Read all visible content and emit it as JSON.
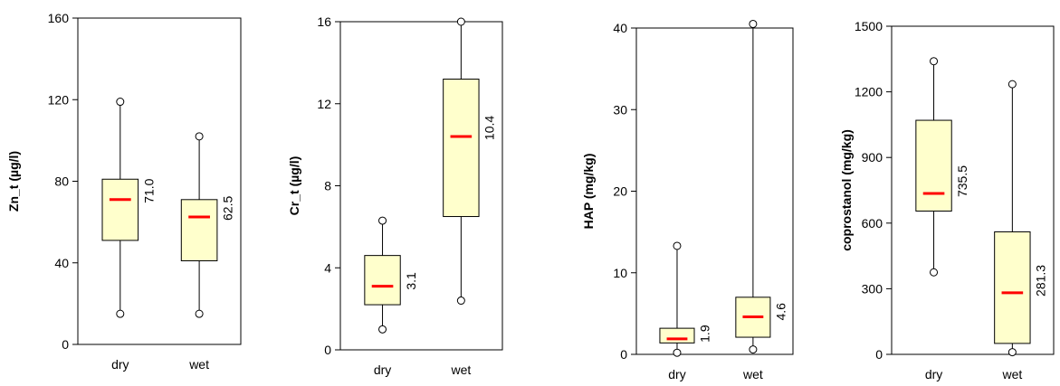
{
  "chart_data": [
    {
      "type": "box",
      "ylabel": "Zn_t (µg/l)",
      "ylim": [
        0,
        160
      ],
      "yticks": [
        0,
        40,
        80,
        120,
        160
      ],
      "categories": [
        "dry",
        "wet"
      ],
      "boxes": [
        {
          "category": "dry",
          "whisker_low": 15,
          "q1": 51,
          "median": 71.0,
          "q3": 81,
          "whisker_high": 119,
          "median_label": "71.0"
        },
        {
          "category": "wet",
          "whisker_low": 15,
          "q1": 41,
          "median": 62.5,
          "q3": 71,
          "whisker_high": 102,
          "median_label": "62.5"
        }
      ]
    },
    {
      "type": "box",
      "ylabel": "Cr_t (µg/l)",
      "ylim": [
        0,
        16
      ],
      "yticks": [
        0,
        4,
        8,
        12,
        16
      ],
      "categories": [
        "dry",
        "wet"
      ],
      "boxes": [
        {
          "category": "dry",
          "whisker_low": 1.0,
          "q1": 2.2,
          "median": 3.1,
          "q3": 4.6,
          "whisker_high": 6.3,
          "median_label": "3.1"
        },
        {
          "category": "wet",
          "whisker_low": 2.4,
          "q1": 6.5,
          "median": 10.4,
          "q3": 13.2,
          "whisker_high": 16.0,
          "median_label": "10.4"
        }
      ]
    },
    {
      "type": "box",
      "ylabel": "HAP (mg/kg)",
      "ylim": [
        0,
        40
      ],
      "yticks": [
        0,
        10,
        20,
        30,
        40
      ],
      "categories": [
        "dry",
        "wet"
      ],
      "boxes": [
        {
          "category": "dry",
          "whisker_low": 0.2,
          "q1": 1.4,
          "median": 1.9,
          "q3": 3.2,
          "whisker_high": 13.3,
          "median_label": "1.9"
        },
        {
          "category": "wet",
          "whisker_low": 0.6,
          "q1": 2.1,
          "median": 4.6,
          "q3": 7.0,
          "whisker_high": 40.5,
          "median_label": "4.6"
        }
      ]
    },
    {
      "type": "box",
      "ylabel": "coprostanol (mg/kg)",
      "ylim": [
        0,
        1500
      ],
      "yticks": [
        0,
        300,
        600,
        900,
        1200,
        1500
      ],
      "categories": [
        "dry",
        "wet"
      ],
      "boxes": [
        {
          "category": "dry",
          "whisker_low": 375,
          "q1": 655,
          "median": 735.5,
          "q3": 1070,
          "whisker_high": 1340,
          "median_label": "735.5"
        },
        {
          "category": "wet",
          "whisker_low": 10,
          "q1": 50,
          "median": 281.3,
          "q3": 560,
          "whisker_high": 1235,
          "median_label": "281.3"
        }
      ]
    }
  ],
  "colors": {
    "box_fill": "#ffffcc",
    "box_stroke": "#000000",
    "median": "#ff0000",
    "axis": "#000000"
  }
}
